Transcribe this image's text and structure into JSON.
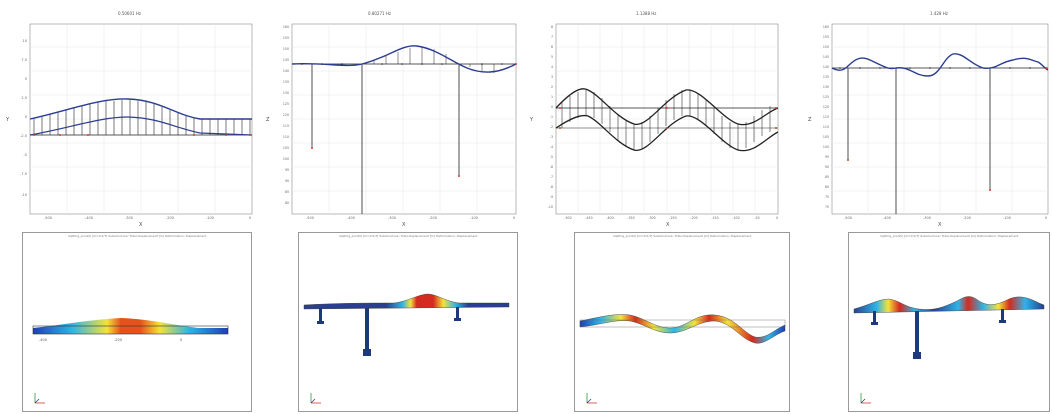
{
  "panels": [
    {
      "title": "0.50601 Hz",
      "ylabel": "Y",
      "xlabel": "X",
      "yticks": [
        "10",
        "7.5",
        "5",
        "2.5",
        "0",
        "-2.5",
        "-5",
        "-7.5",
        "-10"
      ],
      "xticks": [
        "-500",
        "-400",
        "-300",
        "-200",
        "-100",
        "0"
      ],
      "viewport_caption": "mpPmg_prod(t) [m=0.5/T] Substructure: Total displacement [m] Deformation: Displacement",
      "viewport_ticks": [
        "-400",
        "-200",
        "0"
      ],
      "colors": {
        "wave": "#2c3d8f",
        "line": "#222222",
        "node": "#d33a2c"
      }
    },
    {
      "title": "0.80271 Hz",
      "ylabel": "Z",
      "xlabel": "X",
      "yticks": [
        "160",
        "155",
        "150",
        "145",
        "140",
        "135",
        "130",
        "125",
        "120",
        "115",
        "110",
        "105",
        "100",
        "95",
        "90",
        "85",
        "80"
      ],
      "xticks": [
        "-500",
        "-400",
        "-300",
        "-200",
        "-100",
        "0"
      ],
      "viewport_caption": "mpPmg_prod(t) [m=0.5/T] Substructure: Total displacement [m] Deformation: Displacement",
      "colors": {
        "wave": "#2c3d8f",
        "line": "#222222",
        "node": "#d33a2c"
      }
    },
    {
      "title": "1.1388 Hz",
      "ylabel": "Y",
      "xlabel": "X",
      "yticks": [
        "8",
        "7",
        "6",
        "5",
        "4",
        "3",
        "2",
        "1",
        "0",
        "-1",
        "-2",
        "-3",
        "-4",
        "-5",
        "-6",
        "-7",
        "-8",
        "-9",
        "-10"
      ],
      "xticks": [
        "-500",
        "-450",
        "-400",
        "-350",
        "-300",
        "-250",
        "-200",
        "-150",
        "-100",
        "-50",
        "0"
      ],
      "viewport_caption": "mpPmg_prod(t) [m=0.5/T] Substructure: Total displacement [m] Deformation: Displacement",
      "colors": {
        "wave": "#2c3d8f",
        "line": "#222222",
        "node": "#d33a2c"
      }
    },
    {
      "title": "1.428 Hz",
      "ylabel": "Z",
      "xlabel": "X",
      "yticks": [
        "160",
        "155",
        "150",
        "145",
        "140",
        "135",
        "130",
        "125",
        "120",
        "115",
        "110",
        "105",
        "100",
        "95",
        "90",
        "85",
        "80",
        "75",
        "70"
      ],
      "xticks": [
        "-500",
        "-400",
        "-300",
        "-200",
        "-100",
        "0"
      ],
      "viewport_caption": "mpPmg_prod(t) [m=0.5/T] Substructure: Total displacement [m] Deformation: Displacement",
      "colors": {
        "wave": "#2c3d8f",
        "line": "#222222",
        "node": "#d33a2c"
      }
    }
  ],
  "colors": {
    "grid": "#e6e6e6",
    "axis": "#8a8a8a",
    "viewport_border": "#9a9a9a",
    "contour_hot": "#d42a1f",
    "contour_cold": "#1f3fb0",
    "structure": "#1c3a7a"
  }
}
